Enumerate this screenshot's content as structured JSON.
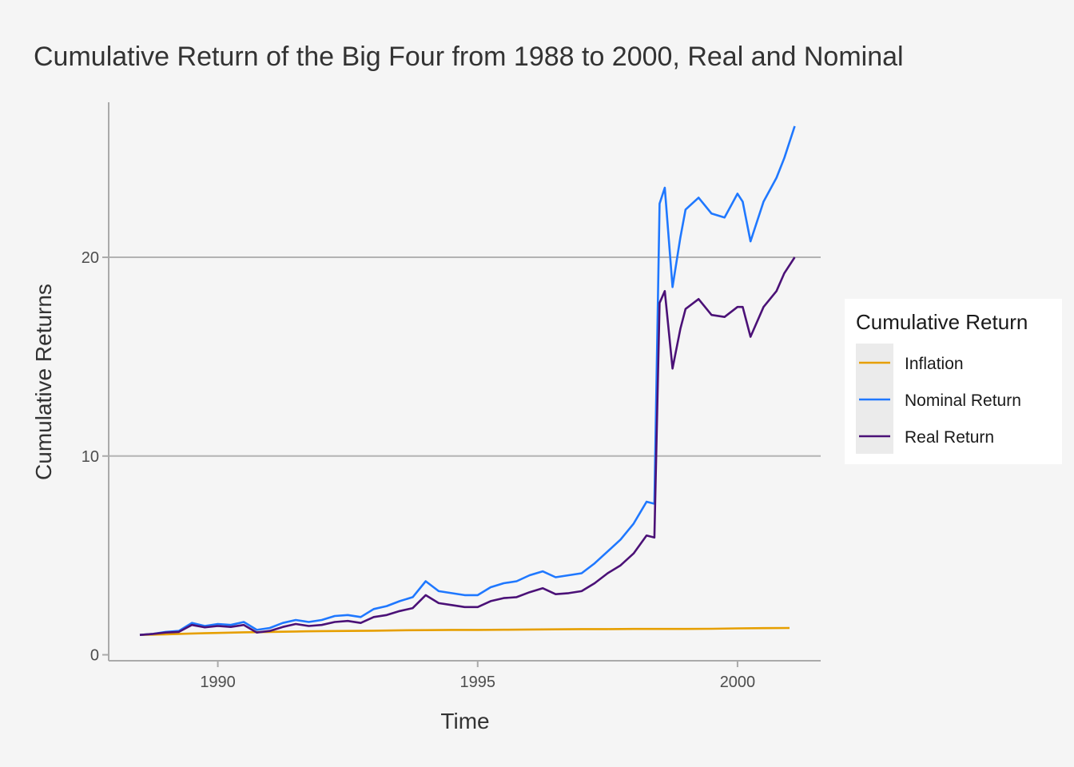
{
  "chart_data": {
    "type": "line",
    "title": "Cumulative Return of the Big Four from 1988 to 2000, Real and Nominal",
    "xlabel": "Time",
    "ylabel": "Cumulative Returns",
    "xlim": [
      1987.9,
      2001.6
    ],
    "ylim": [
      -0.3,
      27.8
    ],
    "x_ticks": [
      1990,
      1995,
      2000
    ],
    "y_ticks": [
      0,
      10,
      20
    ],
    "grid": "horizontal major",
    "legend": {
      "title": "Cumulative Return",
      "position": "right"
    },
    "series": [
      {
        "name": "Inflation",
        "color": "#E69F00",
        "x": [
          1988.5,
          1989.0,
          1989.5,
          1990.0,
          1990.5,
          1991.0,
          1991.5,
          1992.0,
          1992.5,
          1993.0,
          1993.5,
          1994.0,
          1994.5,
          1995.0,
          1995.5,
          1996.0,
          1996.5,
          1997.0,
          1997.5,
          1998.0,
          1998.5,
          1999.0,
          1999.5,
          2000.0,
          2000.5,
          2001.0
        ],
        "values": [
          1.0,
          1.03,
          1.07,
          1.1,
          1.13,
          1.15,
          1.17,
          1.19,
          1.2,
          1.21,
          1.23,
          1.24,
          1.25,
          1.25,
          1.26,
          1.27,
          1.28,
          1.29,
          1.29,
          1.3,
          1.3,
          1.3,
          1.31,
          1.33,
          1.34,
          1.35
        ]
      },
      {
        "name": "Nominal Return",
        "color": "#1F78FF",
        "x": [
          1988.5,
          1988.75,
          1989.0,
          1989.25,
          1989.5,
          1989.75,
          1990.0,
          1990.25,
          1990.5,
          1990.75,
          1991.0,
          1991.25,
          1991.5,
          1991.75,
          1992.0,
          1992.25,
          1992.5,
          1992.75,
          1993.0,
          1993.25,
          1993.5,
          1993.75,
          1994.0,
          1994.25,
          1994.5,
          1994.75,
          1995.0,
          1995.25,
          1995.5,
          1995.75,
          1996.0,
          1996.25,
          1996.5,
          1996.75,
          1997.0,
          1997.25,
          1997.5,
          1997.75,
          1998.0,
          1998.25,
          1998.4,
          1998.5,
          1998.6,
          1998.75,
          1998.9,
          1999.0,
          1999.25,
          1999.5,
          1999.75,
          2000.0,
          2000.1,
          2000.25,
          2000.5,
          2000.75,
          2000.9,
          2001.1
        ],
        "values": [
          1.0,
          1.05,
          1.15,
          1.2,
          1.6,
          1.45,
          1.55,
          1.5,
          1.65,
          1.25,
          1.35,
          1.6,
          1.75,
          1.65,
          1.75,
          1.95,
          2.0,
          1.9,
          2.3,
          2.45,
          2.7,
          2.9,
          3.7,
          3.2,
          3.1,
          3.0,
          3.0,
          3.4,
          3.6,
          3.7,
          4.0,
          4.2,
          3.9,
          4.0,
          4.1,
          4.6,
          5.2,
          5.8,
          6.6,
          7.7,
          7.6,
          22.7,
          23.5,
          18.5,
          21.0,
          22.4,
          23.0,
          22.2,
          22.0,
          23.2,
          22.8,
          20.8,
          22.8,
          24.0,
          25.0,
          26.6
        ]
      },
      {
        "name": "Real Return",
        "color": "#4B1177",
        "x": [
          1988.5,
          1988.75,
          1989.0,
          1989.25,
          1989.5,
          1989.75,
          1990.0,
          1990.25,
          1990.5,
          1990.75,
          1991.0,
          1991.25,
          1991.5,
          1991.75,
          1992.0,
          1992.25,
          1992.5,
          1992.75,
          1993.0,
          1993.25,
          1993.5,
          1993.75,
          1994.0,
          1994.25,
          1994.5,
          1994.75,
          1995.0,
          1995.25,
          1995.5,
          1995.75,
          1996.0,
          1996.25,
          1996.5,
          1996.75,
          1997.0,
          1997.25,
          1997.5,
          1997.75,
          1998.0,
          1998.25,
          1998.4,
          1998.5,
          1998.6,
          1998.75,
          1998.9,
          1999.0,
          1999.25,
          1999.5,
          1999.75,
          2000.0,
          2000.1,
          2000.25,
          2000.5,
          2000.75,
          2000.9,
          2001.1
        ],
        "values": [
          1.0,
          1.05,
          1.12,
          1.15,
          1.5,
          1.38,
          1.45,
          1.4,
          1.5,
          1.12,
          1.2,
          1.4,
          1.55,
          1.45,
          1.5,
          1.65,
          1.7,
          1.6,
          1.9,
          2.0,
          2.2,
          2.35,
          3.0,
          2.6,
          2.5,
          2.4,
          2.4,
          2.7,
          2.85,
          2.9,
          3.15,
          3.35,
          3.05,
          3.1,
          3.2,
          3.6,
          4.1,
          4.5,
          5.1,
          6.0,
          5.9,
          17.7,
          18.3,
          14.4,
          16.4,
          17.4,
          17.9,
          17.1,
          17.0,
          17.5,
          17.5,
          16.0,
          17.5,
          18.3,
          19.2,
          20.0
        ]
      }
    ]
  }
}
